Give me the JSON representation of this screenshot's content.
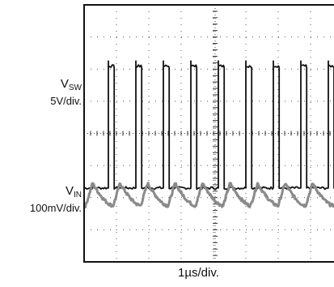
{
  "chart_data": {
    "type": "line",
    "title": "",
    "xlabel": "1µs/div.",
    "ylabel": "",
    "grid": true,
    "x_divisions": 10,
    "y_divisions": 8,
    "x_unit_per_div_us": 1,
    "series": [
      {
        "name": "V_SW",
        "scale": "5V/div.",
        "color": "#111111",
        "waveform": "square",
        "period_div": 0.85,
        "high_duty": 0.18,
        "low_level_div": 2.3,
        "high_level_div": 6.1,
        "first_rise_div": 0.75
      },
      {
        "name": "V_IN",
        "scale": "100mV/div.",
        "color": "#8a8a8a",
        "waveform": "ripple",
        "period_div": 0.85,
        "mean_level_div": -1.0,
        "peak_to_peak_div": 0.7
      }
    ]
  },
  "labels": {
    "vsw_symbol": "V",
    "vsw_sub": "SW",
    "vsw_scale": "5V/div.",
    "vin_symbol": "V",
    "vin_sub": "IN",
    "vin_scale": "100mV/div.",
    "time_scale": "1µs/div."
  }
}
